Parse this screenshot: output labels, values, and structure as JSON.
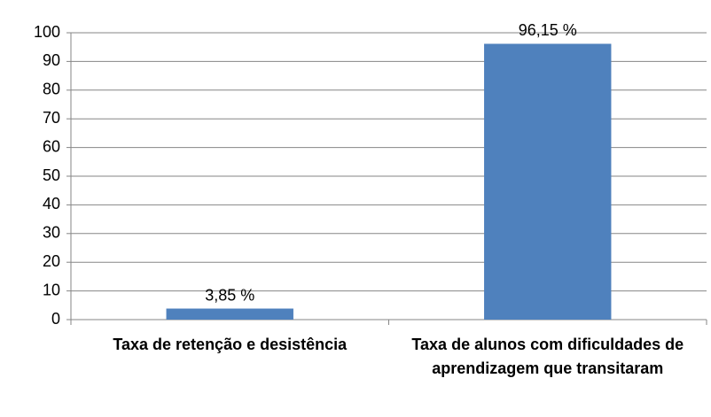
{
  "chart_data": {
    "type": "bar",
    "categories": [
      "Taxa de retenção e desistência",
      "Taxa de alunos com dificuldades de aprendizagem que transitaram"
    ],
    "values": [
      3.85,
      96.15
    ],
    "value_labels": [
      "3,85 %",
      "96,15 %"
    ],
    "color": "#4f81bd",
    "ylim": [
      0,
      100
    ],
    "yticks": [
      0,
      10,
      20,
      30,
      40,
      50,
      60,
      70,
      80,
      90,
      100
    ],
    "grid": true
  }
}
